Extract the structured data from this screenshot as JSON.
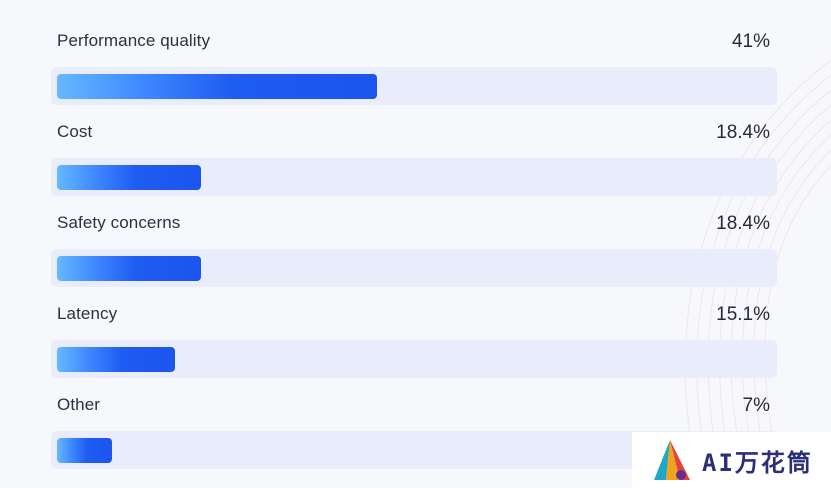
{
  "chart_data": {
    "type": "bar",
    "orientation": "horizontal",
    "categories": [
      "Performance quality",
      "Cost",
      "Safety concerns",
      "Latency",
      "Other"
    ],
    "values": [
      41,
      18.4,
      18.4,
      15.1,
      7
    ],
    "value_labels": [
      "41%",
      "18.4%",
      "18.4%",
      "15.1%",
      "7%"
    ],
    "unit": "%",
    "xlim": [
      0,
      100
    ],
    "title": "",
    "xlabel": "",
    "ylabel": "",
    "grid": false,
    "legend": "none"
  },
  "watermark": {
    "text": "AI万花筒"
  },
  "colors": {
    "bar_start": "#66b8ff",
    "bar_end": "#1b55ee",
    "track": "#e8ecfb",
    "background": "#f7f8fc",
    "text": "#2c3140",
    "logo_text": "#2a2f7a"
  }
}
